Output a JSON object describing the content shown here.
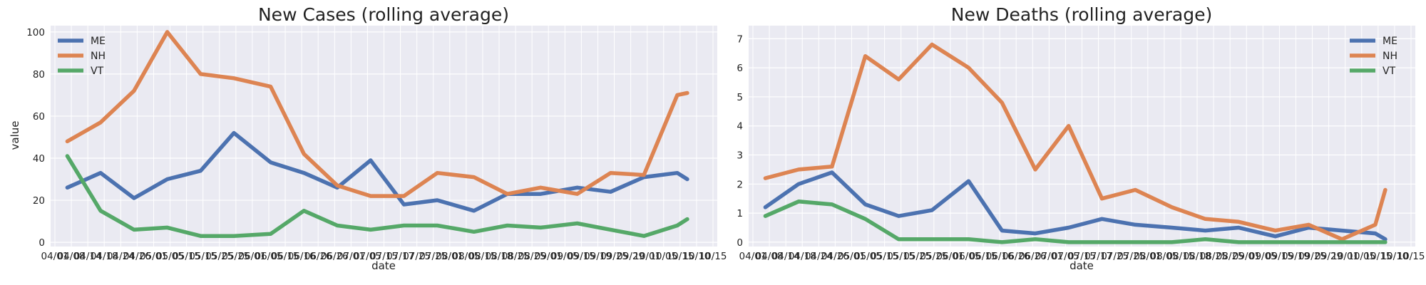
{
  "colors": {
    "ME": "#4c72b0",
    "NH": "#dd8452",
    "VT": "#55a868",
    "axes_bg": "#eaeaf2",
    "grid": "#ffffff"
  },
  "xticks": [
    "04/01",
    "04/08",
    "04/14",
    "04/18",
    "04/24",
    "04/26",
    "05/01",
    "05/05",
    "05/15",
    "05/15",
    "05/25",
    "05/25",
    "06/01",
    "06/05",
    "06/15",
    "06/16",
    "06/26",
    "06/26",
    "07/01",
    "07/05",
    "07/15",
    "07/17",
    "07/25",
    "07/25",
    "08/01",
    "08/05",
    "08/15",
    "08/18",
    "08/25",
    "08/25",
    "09/01",
    "09/05",
    "09/15",
    "09/19",
    "09/25",
    "09/29",
    "10/01",
    "10/05",
    "10/15",
    "10/10",
    "10/15"
  ],
  "chart_data": [
    {
      "type": "line",
      "title": "New Cases (rolling average)",
      "xlabel": "date",
      "ylabel": "value",
      "ylim": [
        -2,
        103
      ],
      "yticks": [
        0,
        20,
        40,
        60,
        80,
        100
      ],
      "grid": true,
      "legend": "upper left",
      "x": [
        "04/05",
        "04/15",
        "04/25",
        "05/05",
        "05/15",
        "05/25",
        "06/05",
        "06/15",
        "06/25",
        "07/05",
        "07/15",
        "07/25",
        "08/05",
        "08/15",
        "08/25",
        "09/05",
        "09/15",
        "09/25",
        "10/05",
        "10/08"
      ],
      "series": [
        {
          "name": "ME",
          "values": [
            26,
            33,
            21,
            30,
            34,
            52,
            38,
            33,
            26,
            39,
            18,
            20,
            15,
            23,
            23,
            26,
            24,
            31,
            33,
            30
          ]
        },
        {
          "name": "NH",
          "values": [
            48,
            57,
            72,
            100,
            80,
            78,
            74,
            42,
            27,
            22,
            22,
            33,
            31,
            23,
            26,
            23,
            33,
            32,
            70,
            71
          ]
        },
        {
          "name": "VT",
          "values": [
            41,
            15,
            6,
            7,
            3,
            3,
            4,
            15,
            8,
            6,
            8,
            8,
            5,
            8,
            7,
            9,
            6,
            3,
            8,
            11
          ]
        }
      ]
    },
    {
      "type": "line",
      "title": "New Deaths (rolling average)",
      "xlabel": "date",
      "ylabel": "",
      "ylim": [
        -0.15,
        7.45
      ],
      "yticks": [
        0,
        1,
        2,
        3,
        4,
        5,
        6,
        7
      ],
      "grid": true,
      "legend": "upper right",
      "x": [
        "04/05",
        "04/15",
        "04/25",
        "05/05",
        "05/15",
        "05/25",
        "06/05",
        "06/15",
        "06/25",
        "07/05",
        "07/15",
        "07/25",
        "08/05",
        "08/15",
        "08/25",
        "09/05",
        "09/15",
        "09/25",
        "10/05",
        "10/08"
      ],
      "series": [
        {
          "name": "ME",
          "values": [
            1.2,
            2.0,
            2.4,
            1.3,
            0.9,
            1.1,
            2.1,
            0.4,
            0.3,
            0.5,
            0.8,
            0.6,
            0.5,
            0.4,
            0.5,
            0.2,
            0.5,
            0.4,
            0.3,
            0.1
          ]
        },
        {
          "name": "NH",
          "values": [
            2.2,
            2.5,
            2.6,
            6.4,
            5.6,
            6.8,
            6.0,
            4.8,
            2.5,
            4.0,
            1.5,
            1.8,
            1.2,
            0.8,
            0.7,
            0.4,
            0.6,
            0.1,
            0.6,
            1.8
          ]
        },
        {
          "name": "VT",
          "values": [
            0.9,
            1.4,
            1.3,
            0.8,
            0.1,
            0.1,
            0.1,
            0.0,
            0.1,
            0.0,
            0.0,
            0.0,
            0.0,
            0.1,
            0.0,
            0.0,
            0.0,
            0.0,
            0.0,
            0.0
          ]
        }
      ]
    }
  ]
}
